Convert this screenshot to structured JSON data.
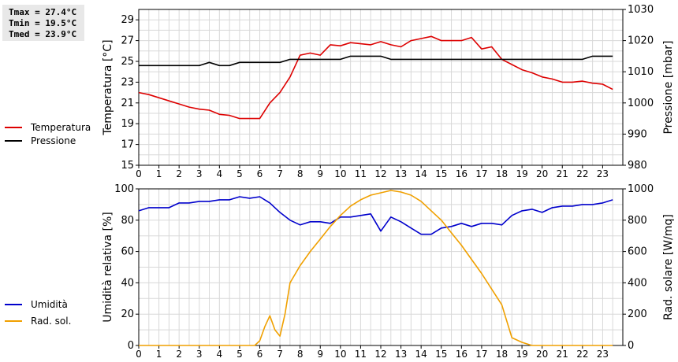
{
  "stats": {
    "tmax": "Tmax = 27.4°C",
    "tmin": "Tmin = 19.5°C",
    "tmed": "Tmed = 23.9°C"
  },
  "chart_data": [
    {
      "type": "line",
      "xlabel": "",
      "ylabel": "Temperatura [°C]",
      "ylabel_right": "Pressione [mbar]",
      "xlim": [
        0,
        24
      ],
      "ylim": [
        15,
        30
      ],
      "ylim_right": [
        980,
        1030
      ],
      "xticks": [
        0,
        1,
        2,
        3,
        4,
        5,
        6,
        7,
        8,
        9,
        10,
        11,
        12,
        13,
        14,
        15,
        16,
        17,
        18,
        19,
        20,
        21,
        22,
        23
      ],
      "yticks": [
        15,
        17,
        19,
        21,
        23,
        25,
        27,
        29
      ],
      "yticks_right": [
        980,
        990,
        1000,
        1010,
        1020,
        1030
      ],
      "grid": true,
      "legend_placement": "left",
      "series": [
        {
          "name": "Temperatura",
          "color": "#dd0000",
          "axis": "left",
          "x": [
            0,
            0.5,
            1,
            1.5,
            2,
            2.5,
            3,
            3.5,
            4,
            4.5,
            5,
            5.5,
            6,
            6.5,
            7,
            7.5,
            8,
            8.5,
            9,
            9.5,
            10,
            10.5,
            11,
            11.5,
            12,
            12.5,
            13,
            13.5,
            14,
            14.5,
            15,
            15.5,
            16,
            16.5,
            17,
            17.5,
            18,
            18.5,
            19,
            19.5,
            20,
            20.5,
            21,
            21.5,
            22,
            22.5,
            23,
            23.5
          ],
          "y": [
            22.0,
            21.8,
            21.5,
            21.2,
            20.9,
            20.6,
            20.4,
            20.3,
            19.9,
            19.8,
            19.5,
            19.5,
            19.5,
            21.0,
            22.0,
            23.5,
            25.6,
            25.8,
            25.6,
            26.6,
            26.5,
            26.8,
            26.7,
            26.6,
            26.9,
            26.6,
            26.4,
            27.0,
            27.2,
            27.4,
            27.0,
            27.0,
            27.0,
            27.3,
            26.2,
            26.4,
            25.2,
            24.7,
            24.2,
            23.9,
            23.5,
            23.3,
            23.0,
            23.0,
            23.1,
            22.9,
            22.8,
            22.3
          ]
        },
        {
          "name": "Pressione",
          "color": "#000000",
          "axis": "right",
          "x": [
            0,
            0.5,
            1,
            1.5,
            2,
            2.5,
            3,
            3.5,
            4,
            4.5,
            5,
            5.5,
            6,
            6.5,
            7,
            7.5,
            8,
            8.5,
            9,
            9.5,
            10,
            10.5,
            11,
            11.5,
            12,
            12.5,
            13,
            13.5,
            14,
            14.5,
            15,
            15.5,
            16,
            16.5,
            17,
            17.5,
            18,
            18.5,
            19,
            19.5,
            20,
            20.5,
            21,
            21.5,
            22,
            22.5,
            23,
            23.5
          ],
          "y": [
            1012,
            1012,
            1012,
            1012,
            1012,
            1012,
            1012,
            1013,
            1012,
            1012,
            1013,
            1013,
            1013,
            1013,
            1013,
            1014,
            1014,
            1014,
            1014,
            1014,
            1014,
            1015,
            1015,
            1015,
            1015,
            1014,
            1014,
            1014,
            1014,
            1014,
            1014,
            1014,
            1014,
            1014,
            1014,
            1014,
            1014,
            1014,
            1014,
            1014,
            1014,
            1014,
            1014,
            1014,
            1014,
            1015,
            1015,
            1015
          ]
        }
      ]
    },
    {
      "type": "line",
      "xlabel": "",
      "ylabel": "Umidità relativa [%]",
      "ylabel_right": "Rad. solare [W/mq]",
      "xlim": [
        0,
        24
      ],
      "ylim": [
        0,
        100
      ],
      "ylim_right": [
        0,
        1000
      ],
      "xticks": [
        0,
        1,
        2,
        3,
        4,
        5,
        6,
        7,
        8,
        9,
        10,
        11,
        12,
        13,
        14,
        15,
        16,
        17,
        18,
        19,
        20,
        21,
        22,
        23
      ],
      "yticks": [
        0,
        20,
        40,
        60,
        80,
        100
      ],
      "yticks_right": [
        0,
        200,
        400,
        600,
        800,
        1000
      ],
      "grid": true,
      "legend_placement": "left",
      "series": [
        {
          "name": "Umidità",
          "color": "#0000cc",
          "axis": "left",
          "x": [
            0,
            0.5,
            1,
            1.5,
            2,
            2.5,
            3,
            3.5,
            4,
            4.5,
            5,
            5.5,
            6,
            6.5,
            7,
            7.5,
            8,
            8.5,
            9,
            9.5,
            10,
            10.5,
            11,
            11.5,
            12,
            12.5,
            13,
            13.5,
            14,
            14.5,
            15,
            15.5,
            16,
            16.5,
            17,
            17.5,
            18,
            18.5,
            19,
            19.5,
            20,
            20.5,
            21,
            21.5,
            22,
            22.5,
            23,
            23.5
          ],
          "y": [
            86,
            88,
            88,
            88,
            91,
            91,
            92,
            92,
            93,
            93,
            95,
            94,
            95,
            91,
            85,
            80,
            77,
            79,
            79,
            78,
            82,
            82,
            83,
            84,
            73,
            82,
            79,
            75,
            71,
            71,
            75,
            76,
            78,
            76,
            78,
            78,
            77,
            83,
            86,
            87,
            85,
            88,
            89,
            89,
            90,
            90,
            91,
            93
          ]
        },
        {
          "name": "Rad. sol.",
          "color": "#f0a000",
          "axis": "right",
          "x": [
            0,
            0.5,
            1,
            1.5,
            2,
            2.5,
            3,
            3.5,
            4,
            4.5,
            5,
            5.5,
            5.75,
            6,
            6.25,
            6.5,
            6.75,
            7,
            7.25,
            7.5,
            8,
            8.5,
            9,
            9.5,
            10,
            10.5,
            11,
            11.5,
            12,
            12.5,
            13,
            13.5,
            14,
            14.5,
            15,
            15.5,
            16,
            16.5,
            17,
            17.5,
            18,
            18.5,
            19,
            19.5,
            20,
            20.5,
            21,
            21.5,
            22,
            22.5,
            23,
            23.5
          ],
          "y": [
            0,
            0,
            0,
            0,
            0,
            0,
            0,
            0,
            0,
            0,
            0,
            0,
            0,
            30,
            120,
            190,
            100,
            60,
            200,
            400,
            510,
            600,
            680,
            760,
            830,
            890,
            930,
            960,
            975,
            990,
            980,
            960,
            920,
            860,
            800,
            720,
            640,
            550,
            460,
            360,
            260,
            50,
            20,
            0,
            0,
            0,
            0,
            0,
            0,
            0,
            0,
            0
          ]
        }
      ]
    }
  ]
}
